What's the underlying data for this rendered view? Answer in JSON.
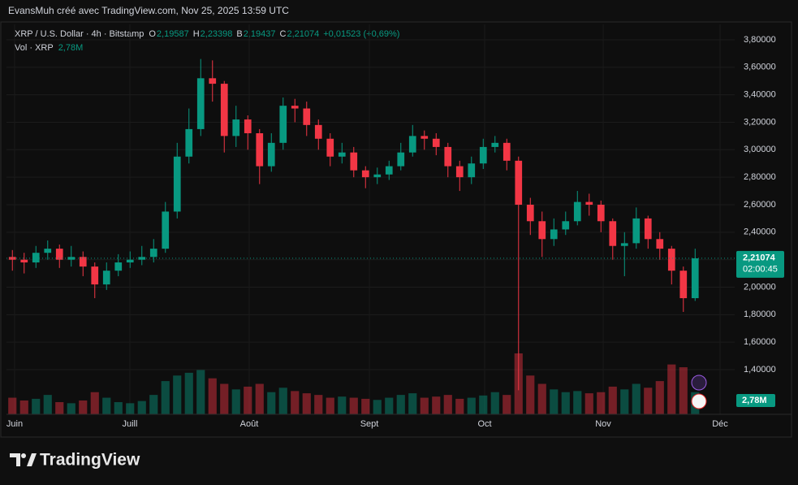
{
  "chart_data": {
    "type": "candlestick",
    "credit": "EvansMuh créé avec TradingView.com, Nov 25, 2025 13:59 UTC",
    "symbol": "XRP / U.S. Dollar · 4h · Bitstamp",
    "ohlc_legend": [
      [
        "O",
        "2,19587"
      ],
      [
        "H",
        "2,23398"
      ],
      [
        "B",
        "2,19437"
      ],
      [
        "C",
        "2,21074"
      ]
    ],
    "change": "+0,01523 (+0,69%)",
    "volume_name": "Vol · XRP",
    "volume_current": "2,78M",
    "last_price": {
      "value": 2.21074,
      "label": "2,21074"
    },
    "countdown": "02:00:45",
    "brand": "TradingView",
    "up_color": "#089981",
    "down_color": "#f23645",
    "xlim": [
      0,
      61.86
    ],
    "xticks": [
      {
        "value": 0.69,
        "label": "Juin"
      },
      {
        "value": 10.48,
        "label": "Juill"
      },
      {
        "value": 20.62,
        "label": "Août"
      },
      {
        "value": 30.83,
        "label": "Sept"
      },
      {
        "value": 40.62,
        "label": "Oct"
      },
      {
        "value": 50.69,
        "label": "Nov"
      },
      {
        "value": 60.62,
        "label": "Déc"
      }
    ],
    "ylim": [
      1.075,
      3.912
    ],
    "yticks": [
      {
        "value": 1.4,
        "label": "1,40000"
      },
      {
        "value": 1.6,
        "label": "1,60000"
      },
      {
        "value": 1.8,
        "label": "1,80000"
      },
      {
        "value": 2.0,
        "label": "2,00000"
      },
      {
        "value": 2.2,
        "label": "2,20000"
      },
      {
        "value": 2.4,
        "label": "2,40000"
      },
      {
        "value": 2.6,
        "label": "2,60000"
      },
      {
        "value": 2.8,
        "label": "2,80000"
      },
      {
        "value": 3.0,
        "label": "3,00000"
      },
      {
        "value": 3.2,
        "label": "3,20000"
      },
      {
        "value": 3.4,
        "label": "3,40000"
      },
      {
        "value": 3.6,
        "label": "3,60000"
      },
      {
        "value": 3.8,
        "label": "3,80000"
      }
    ],
    "grid": true,
    "open": [
      2.22,
      2.2,
      2.18,
      2.25,
      2.28,
      2.2,
      2.22,
      2.15,
      2.02,
      2.12,
      2.18,
      2.2,
      2.22,
      2.28,
      2.55,
      2.95,
      3.15,
      3.52,
      3.48,
      3.1,
      3.22,
      3.12,
      2.88,
      3.05,
      3.32,
      3.3,
      3.18,
      3.08,
      2.95,
      2.98,
      2.85,
      2.8,
      2.82,
      2.88,
      2.98,
      3.1,
      3.08,
      3.02,
      2.88,
      2.8,
      2.9,
      3.02,
      3.05,
      2.92,
      2.6,
      2.48,
      2.35,
      2.42,
      2.48,
      2.62,
      2.6,
      2.48,
      2.3,
      2.32,
      2.5,
      2.35,
      2.28,
      2.12,
      1.92
    ],
    "high": [
      2.27,
      2.25,
      2.3,
      2.34,
      2.31,
      2.3,
      2.26,
      2.18,
      2.18,
      2.24,
      2.26,
      2.3,
      2.35,
      2.62,
      3.05,
      3.3,
      3.66,
      3.65,
      3.5,
      3.32,
      3.25,
      3.15,
      3.12,
      3.38,
      3.37,
      3.35,
      3.22,
      3.12,
      3.05,
      3.02,
      2.88,
      2.87,
      2.92,
      3.05,
      3.18,
      3.14,
      3.12,
      3.05,
      2.92,
      2.95,
      3.08,
      3.1,
      3.08,
      2.95,
      2.65,
      2.55,
      2.5,
      2.55,
      2.7,
      2.68,
      2.63,
      2.5,
      2.4,
      2.58,
      2.52,
      2.4,
      2.3,
      2.15,
      2.28
    ],
    "low": [
      2.12,
      2.1,
      2.14,
      2.2,
      2.14,
      2.15,
      2.08,
      1.92,
      1.98,
      2.08,
      2.14,
      2.16,
      2.18,
      2.25,
      2.5,
      2.9,
      3.1,
      3.35,
      2.98,
      3.02,
      3.0,
      2.75,
      2.84,
      3.0,
      3.2,
      3.1,
      3.0,
      2.88,
      2.9,
      2.8,
      2.72,
      2.75,
      2.78,
      2.85,
      2.95,
      3.0,
      2.96,
      2.8,
      2.7,
      2.75,
      2.86,
      2.98,
      2.85,
      1.25,
      2.38,
      2.22,
      2.3,
      2.38,
      2.45,
      2.52,
      2.4,
      2.2,
      2.08,
      2.28,
      2.28,
      2.2,
      2.02,
      1.82,
      1.9
    ],
    "close": [
      2.2,
      2.18,
      2.25,
      2.28,
      2.2,
      2.22,
      2.15,
      2.02,
      2.12,
      2.18,
      2.2,
      2.22,
      2.28,
      2.55,
      2.95,
      3.15,
      3.52,
      3.48,
      3.1,
      3.22,
      3.12,
      2.88,
      3.05,
      3.32,
      3.3,
      3.18,
      3.08,
      2.95,
      2.98,
      2.85,
      2.8,
      2.82,
      2.88,
      2.98,
      3.1,
      3.08,
      3.02,
      2.88,
      2.8,
      2.9,
      3.02,
      3.05,
      2.92,
      2.6,
      2.48,
      2.35,
      2.42,
      2.48,
      2.62,
      2.6,
      2.48,
      2.3,
      2.32,
      2.5,
      2.35,
      2.28,
      2.12,
      1.92,
      2.21
    ],
    "volume": [
      30,
      25,
      28,
      35,
      22,
      20,
      25,
      40,
      30,
      22,
      20,
      24,
      35,
      60,
      70,
      75,
      80,
      65,
      55,
      45,
      50,
      55,
      40,
      48,
      42,
      38,
      35,
      30,
      32,
      30,
      28,
      26,
      30,
      35,
      38,
      30,
      32,
      35,
      28,
      30,
      34,
      40,
      35,
      110,
      70,
      55,
      45,
      40,
      42,
      38,
      40,
      50,
      45,
      55,
      48,
      60,
      90,
      85,
      40
    ]
  }
}
